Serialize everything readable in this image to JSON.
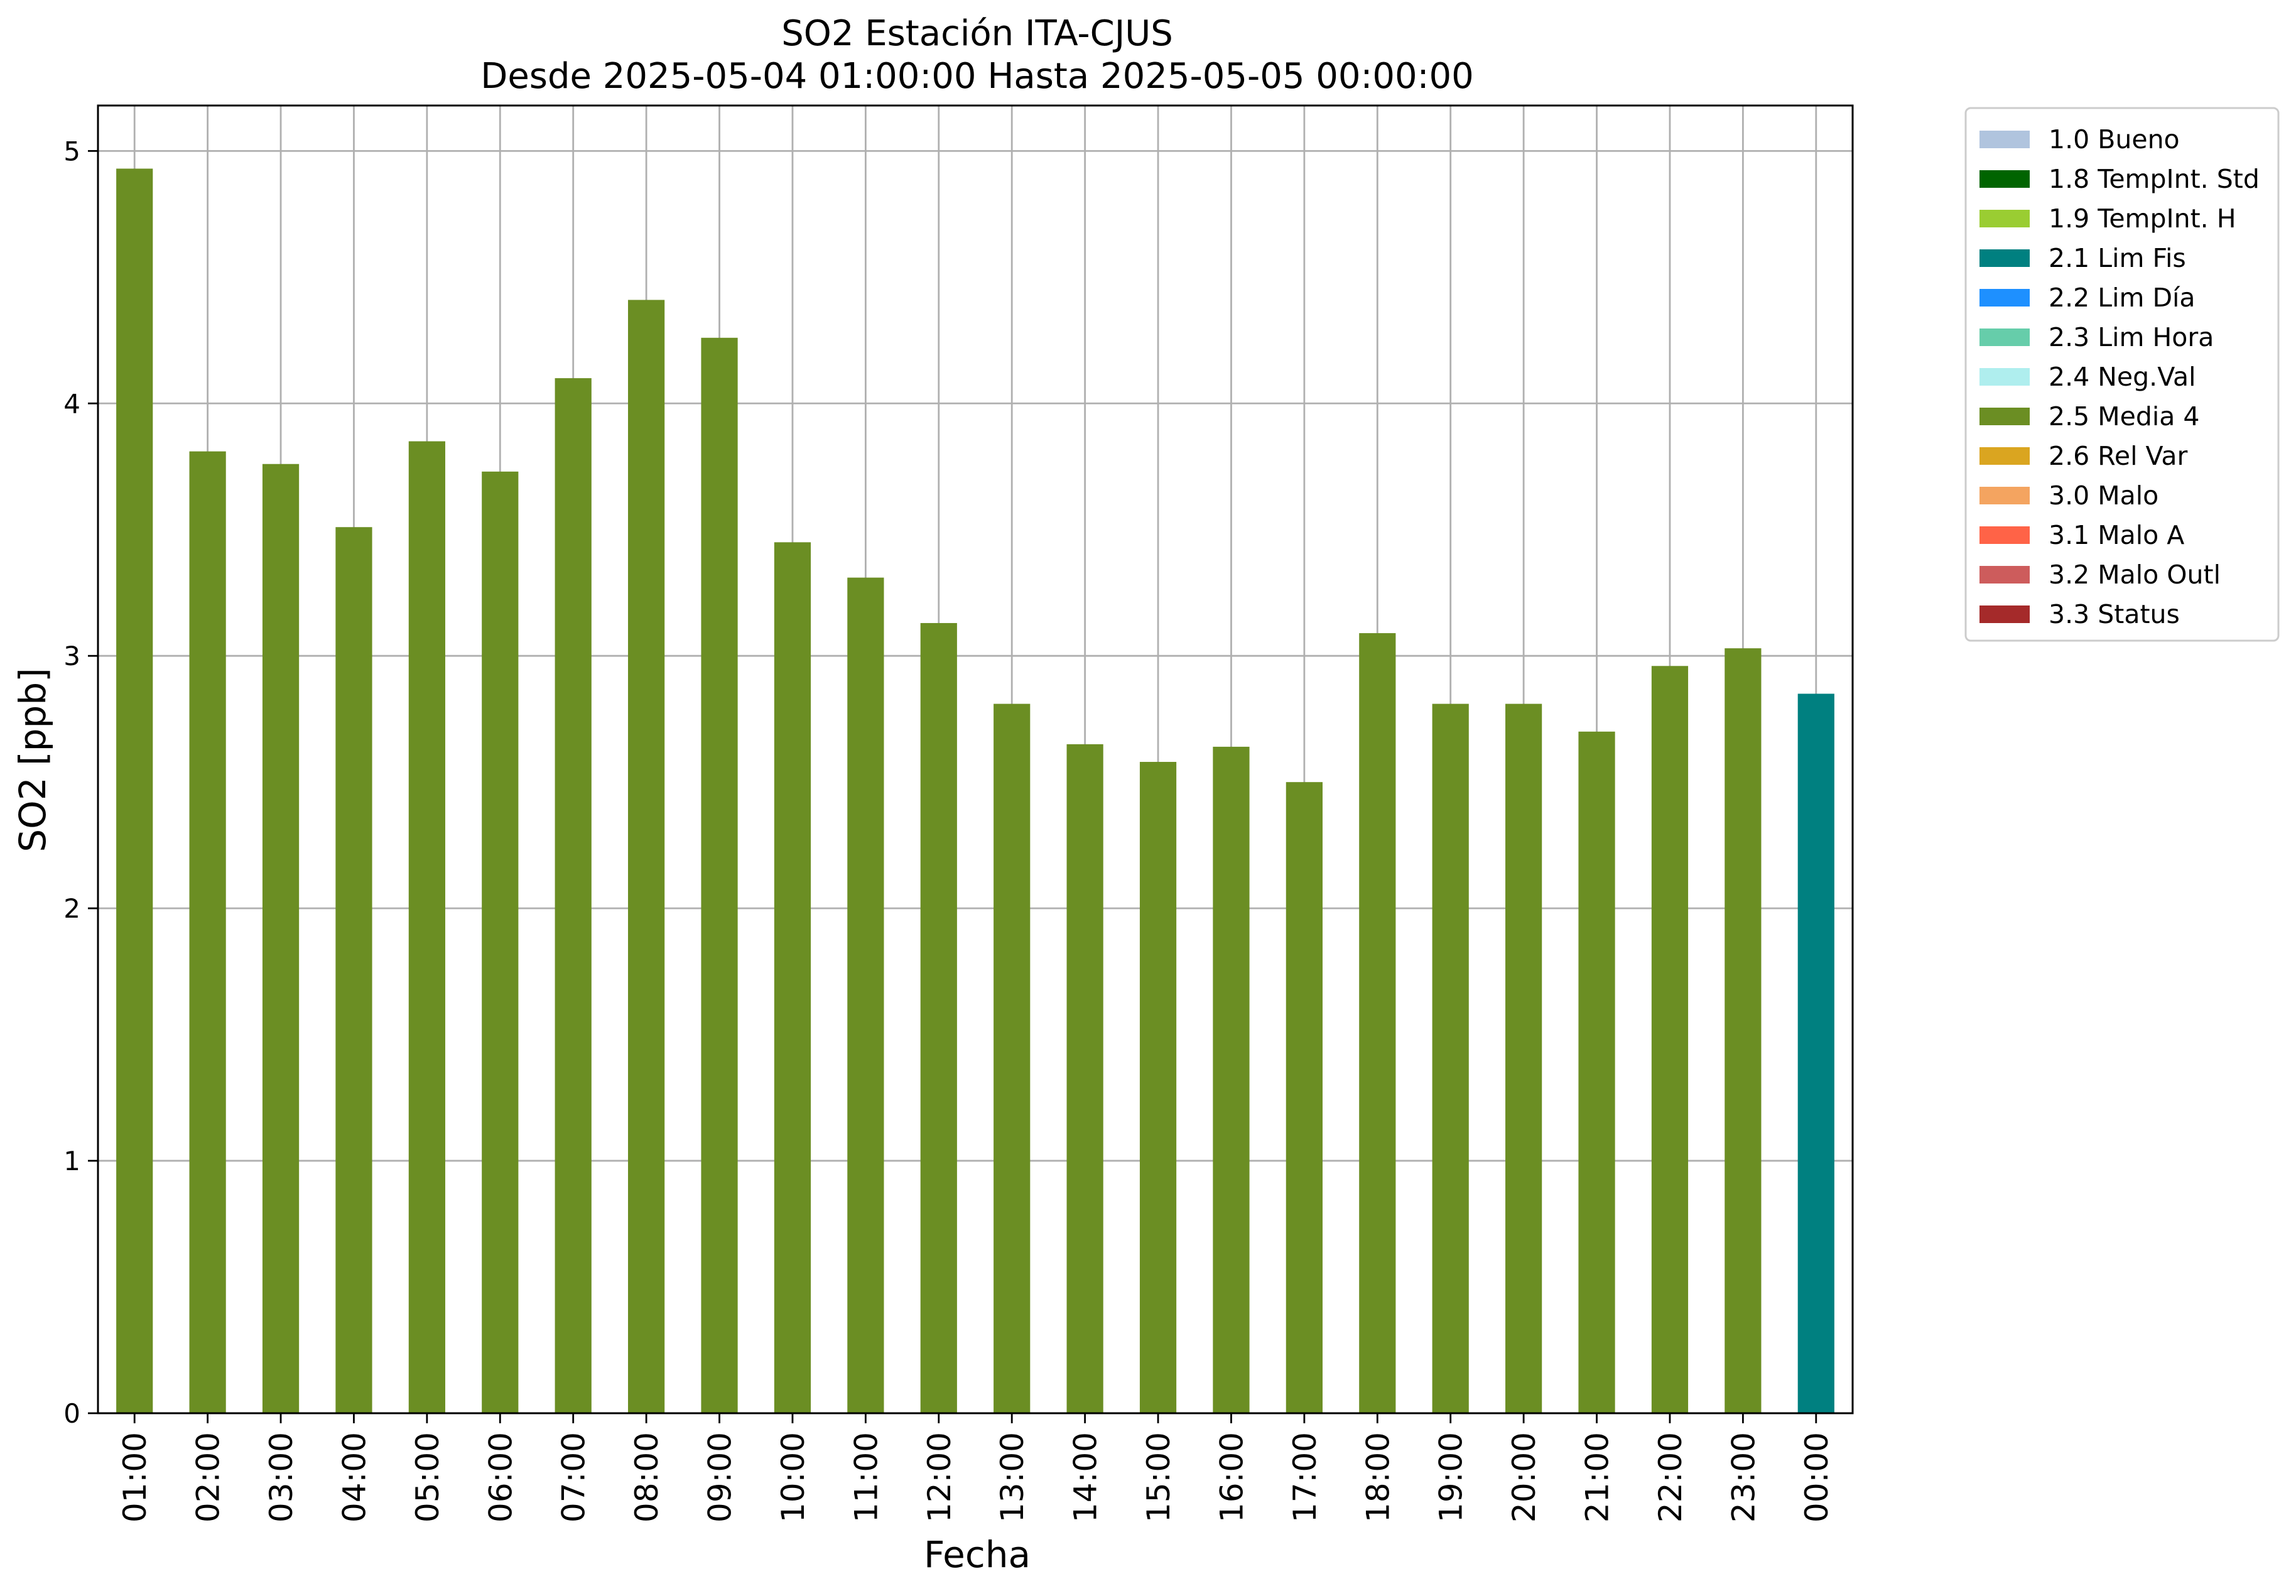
{
  "chart_data": {
    "type": "bar",
    "title": "SO2 Estación ITA-CJUS",
    "subtitle": "Desde 2025-05-04 01:00:00 Hasta 2025-05-05 00:00:00",
    "xlabel": "Fecha",
    "ylabel": "SO2 [ppb]",
    "ylim": [
      0,
      5.18
    ],
    "yticks": [
      "0",
      "1",
      "2",
      "3",
      "4",
      "5"
    ],
    "grid": true,
    "legend_placement": "outside-top-right",
    "categories": [
      "01:00",
      "02:00",
      "03:00",
      "04:00",
      "05:00",
      "06:00",
      "07:00",
      "08:00",
      "09:00",
      "10:00",
      "11:00",
      "12:00",
      "13:00",
      "14:00",
      "15:00",
      "16:00",
      "17:00",
      "18:00",
      "19:00",
      "20:00",
      "21:00",
      "22:00",
      "23:00",
      "00:00"
    ],
    "values": [
      4.93,
      3.81,
      3.76,
      3.51,
      3.85,
      3.73,
      4.1,
      4.41,
      4.26,
      3.45,
      3.31,
      3.13,
      2.81,
      2.65,
      2.58,
      2.64,
      2.5,
      3.09,
      2.81,
      2.81,
      2.7,
      2.96,
      3.03,
      2.85
    ],
    "flags": [
      "2.5 Media 4",
      "2.5 Media 4",
      "2.5 Media 4",
      "2.5 Media 4",
      "2.5 Media 4",
      "2.5 Media 4",
      "2.5 Media 4",
      "2.5 Media 4",
      "2.5 Media 4",
      "2.5 Media 4",
      "2.5 Media 4",
      "2.5 Media 4",
      "2.5 Media 4",
      "2.5 Media 4",
      "2.5 Media 4",
      "2.5 Media 4",
      "2.5 Media 4",
      "2.5 Media 4",
      "2.5 Media 4",
      "2.5 Media 4",
      "2.5 Media 4",
      "2.5 Media 4",
      "2.5 Media 4",
      "2.1 Lim Fis"
    ],
    "legend": [
      {
        "label": "1.0 Bueno",
        "color": "#b0c4de"
      },
      {
        "label": "1.8 TempInt. Std",
        "color": "#006400"
      },
      {
        "label": "1.9 TempInt. H",
        "color": "#9acd32"
      },
      {
        "label": "2.1 Lim Fis",
        "color": "#008080"
      },
      {
        "label": "2.2 Lim Día",
        "color": "#1e90ff"
      },
      {
        "label": "2.3 Lim Hora",
        "color": "#66cdaa"
      },
      {
        "label": "2.4 Neg.Val",
        "color": "#afeeee"
      },
      {
        "label": "2.5 Media 4",
        "color": "#6b8e23"
      },
      {
        "label": "2.6 Rel Var",
        "color": "#daa520"
      },
      {
        "label": "3.0 Malo",
        "color": "#f4a460"
      },
      {
        "label": "3.1 Malo A",
        "color": "#ff6347"
      },
      {
        "label": "3.2 Malo Outl",
        "color": "#cd5c5c"
      },
      {
        "label": "3.3 Status",
        "color": "#a52a2a"
      }
    ]
  }
}
